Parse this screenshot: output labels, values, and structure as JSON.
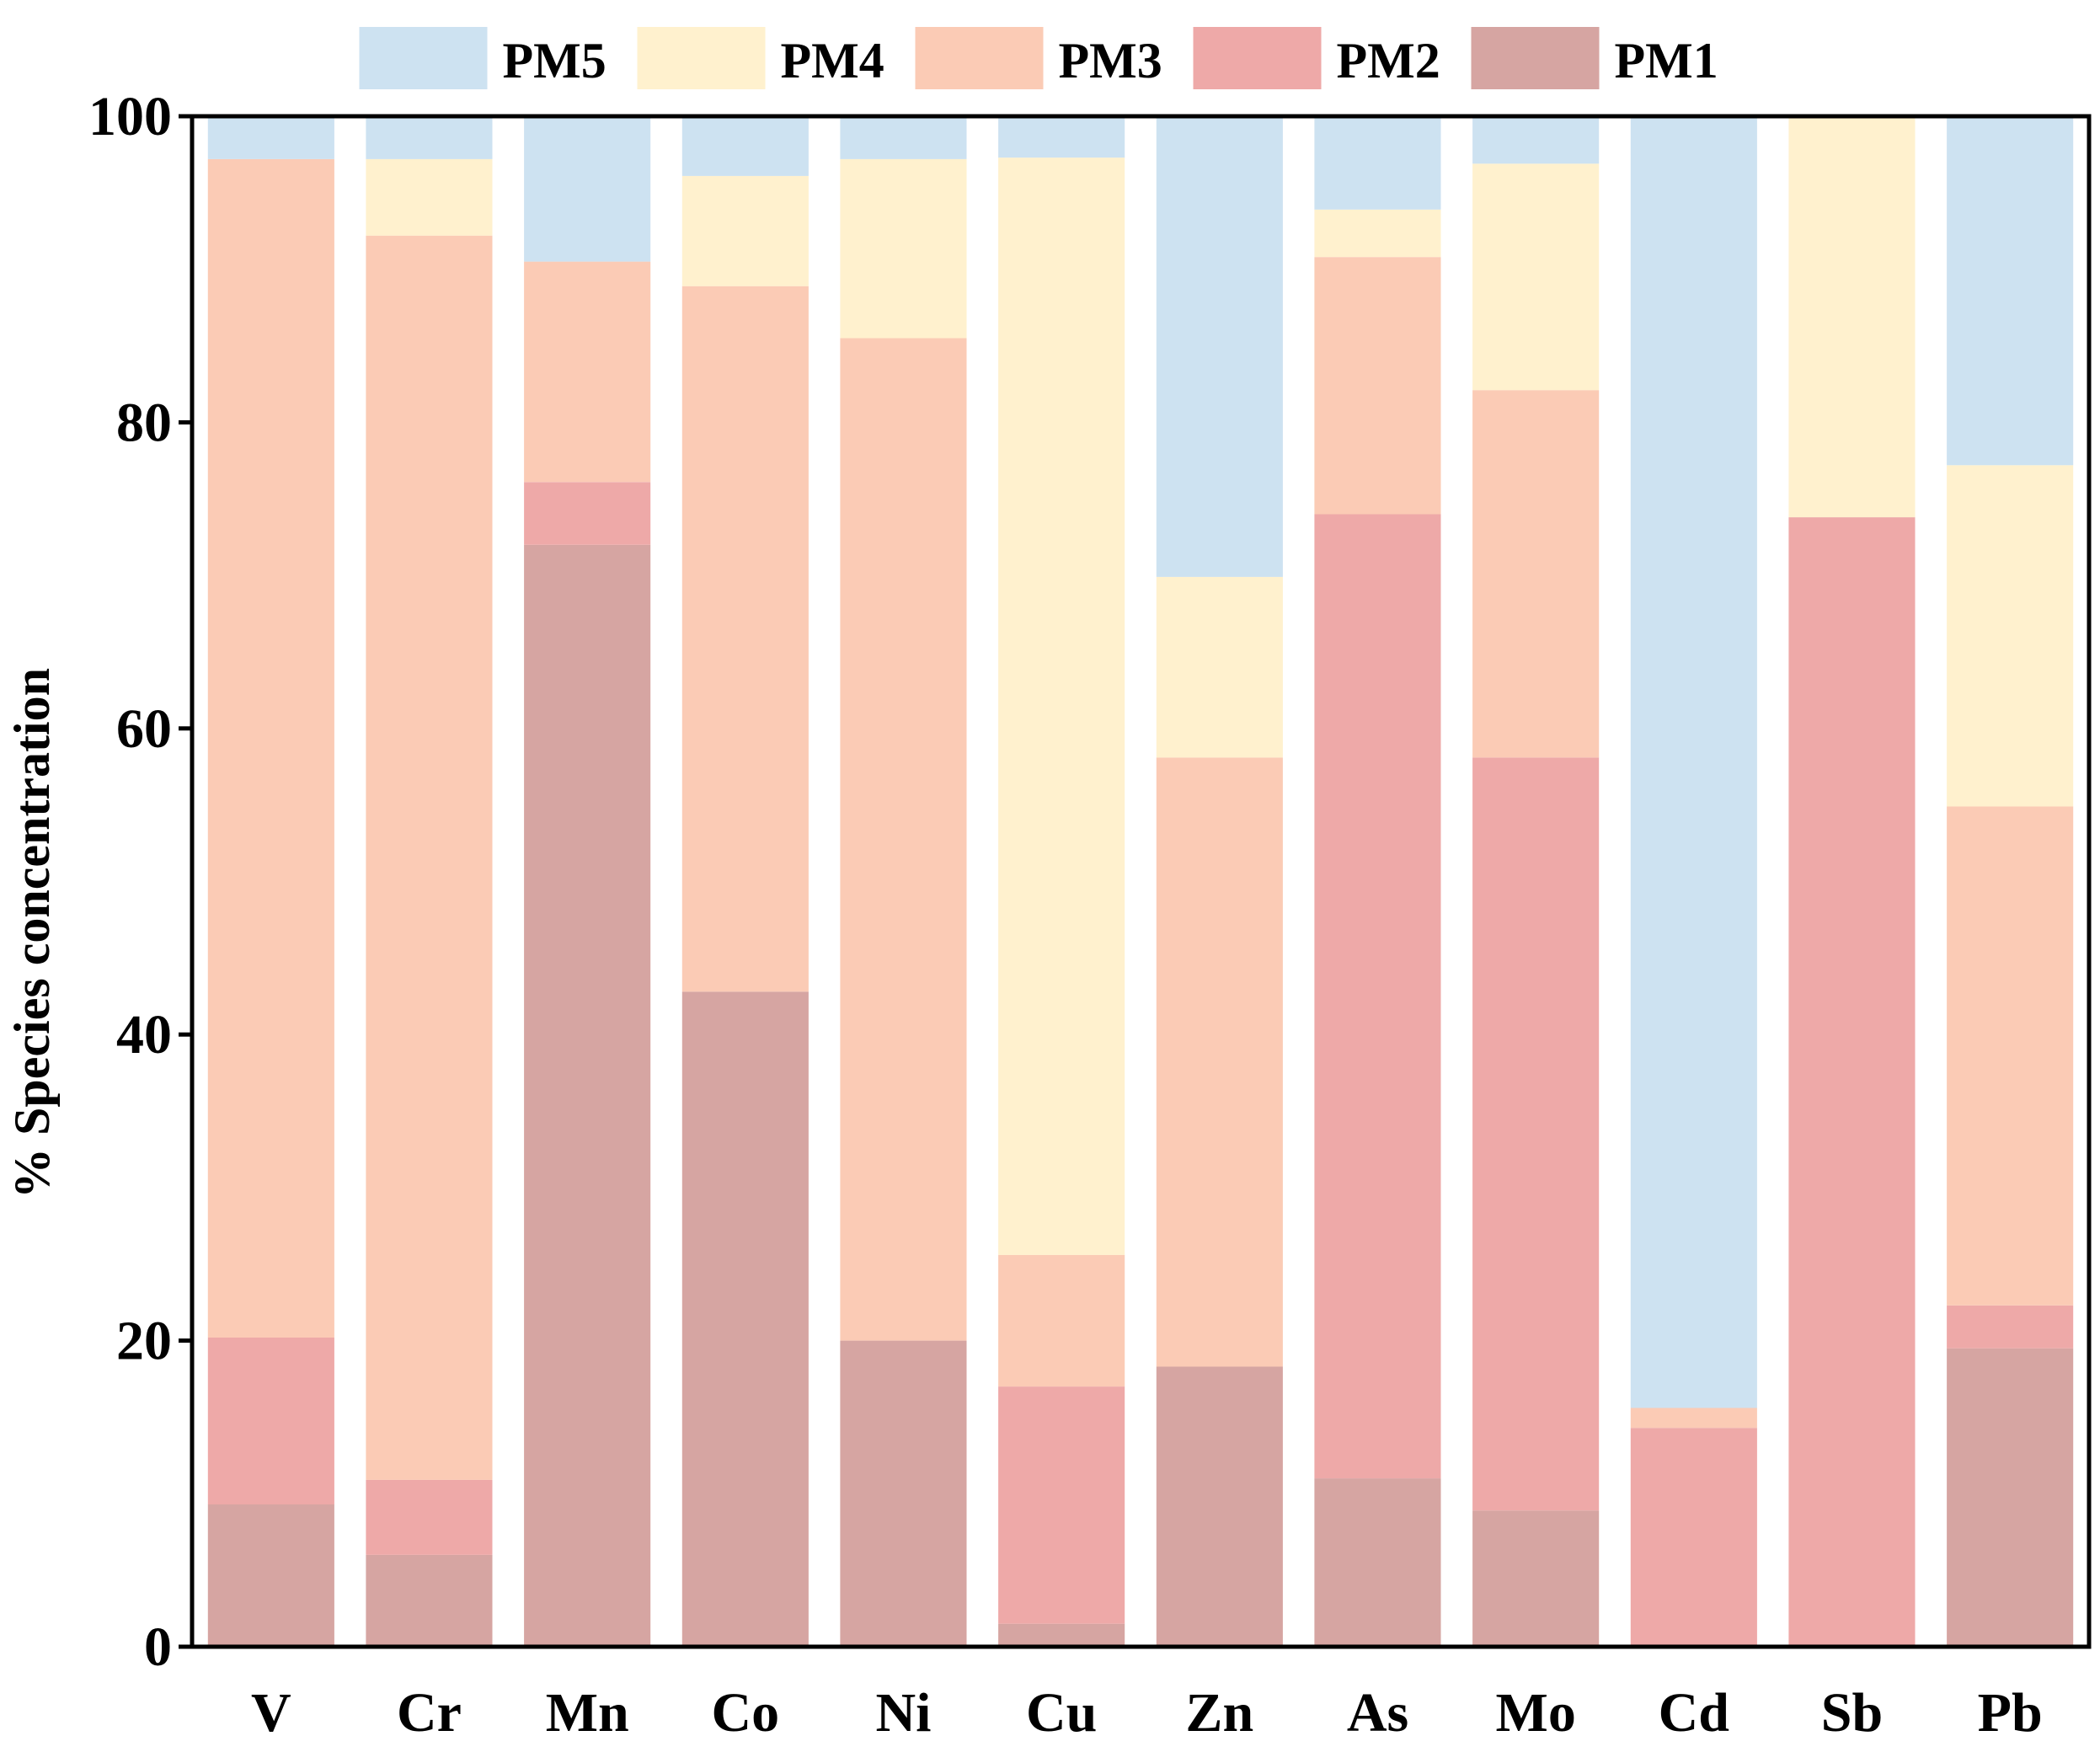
{
  "chart_data": {
    "type": "bar",
    "stacked": true,
    "title": "",
    "xlabel": "",
    "ylabel": "% Species concentration",
    "ylim": [
      0,
      100
    ],
    "yticks": [
      0,
      20,
      40,
      60,
      80,
      100
    ],
    "grid": false,
    "legend_position": "top",
    "categories": [
      "V",
      "Cr",
      "Mn",
      "Co",
      "Ni",
      "Cu",
      "Zn",
      "As",
      "Mo",
      "Cd",
      "Sb",
      "Pb"
    ],
    "series": [
      {
        "name": "PM1",
        "color": "#d6a5a2",
        "values": [
          9.3,
          6.0,
          72.0,
          42.8,
          20.0,
          1.5,
          18.3,
          11.0,
          8.9,
          0.0,
          0.0,
          19.5
        ]
      },
      {
        "name": "PM2",
        "color": "#eea9a8",
        "values": [
          10.9,
          4.9,
          4.1,
          0.0,
          0.0,
          15.5,
          0.0,
          63.0,
          49.2,
          14.3,
          73.8,
          2.8
        ]
      },
      {
        "name": "PM3",
        "color": "#fbcbb5",
        "values": [
          77.0,
          81.3,
          14.4,
          46.1,
          65.5,
          8.6,
          39.8,
          16.8,
          24.0,
          1.3,
          0.0,
          32.6
        ]
      },
      {
        "name": "PM4",
        "color": "#fff1ce",
        "values": [
          0.0,
          5.0,
          0.0,
          7.2,
          11.7,
          71.7,
          11.8,
          3.1,
          14.8,
          0.0,
          26.2,
          22.3
        ]
      },
      {
        "name": "PM5",
        "color": "#cde2f1",
        "values": [
          2.8,
          2.8,
          9.5,
          3.9,
          2.8,
          2.7,
          30.1,
          6.1,
          3.1,
          84.4,
          0.0,
          22.8
        ]
      }
    ],
    "legend_order": [
      "PM5",
      "PM4",
      "PM3",
      "PM2",
      "PM1"
    ]
  }
}
